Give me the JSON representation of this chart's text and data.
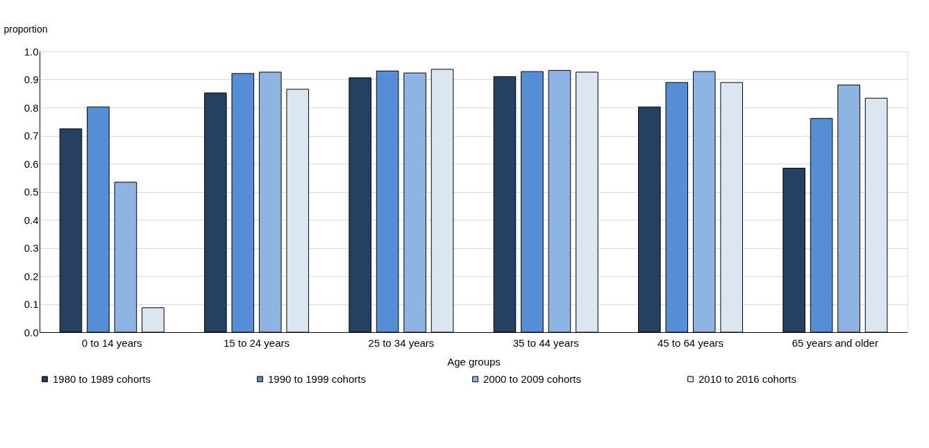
{
  "chart_data": {
    "type": "bar",
    "ylabel": "proportion",
    "xlabel": "Age groups",
    "categories": [
      "0 to 14 years",
      "15 to 24  years",
      "25 to 34 years",
      "35 to 44 years",
      "45 to 64 years",
      "65 years and older"
    ],
    "series": [
      {
        "name": "1980 to 1989 cohorts",
        "color": "#264061",
        "values": [
          0.724,
          0.852,
          0.906,
          0.91,
          0.802,
          0.584
        ]
      },
      {
        "name": "1990 to 1999 cohorts",
        "color": "#558ed5",
        "values": [
          0.802,
          0.921,
          0.93,
          0.928,
          0.889,
          0.761
        ]
      },
      {
        "name": "2000 to 2009 cohorts",
        "color": "#8eb4e3",
        "values": [
          0.534,
          0.926,
          0.923,
          0.932,
          0.928,
          0.88
        ]
      },
      {
        "name": "2010 to 2016 cohorts",
        "color": "#dce6f2",
        "values": [
          0.087,
          0.865,
          0.936,
          0.926,
          0.889,
          0.833
        ]
      }
    ],
    "ylim": [
      0,
      1.0
    ],
    "yticks": [
      {
        "value": 0,
        "label": "0.0"
      },
      0.1,
      0.2,
      0.3,
      0.4,
      0.5,
      0.6,
      0.7,
      0.8,
      0.9,
      {
        "value": 1,
        "label": "1.0"
      }
    ],
    "grid": "y",
    "legend": "bottom"
  }
}
